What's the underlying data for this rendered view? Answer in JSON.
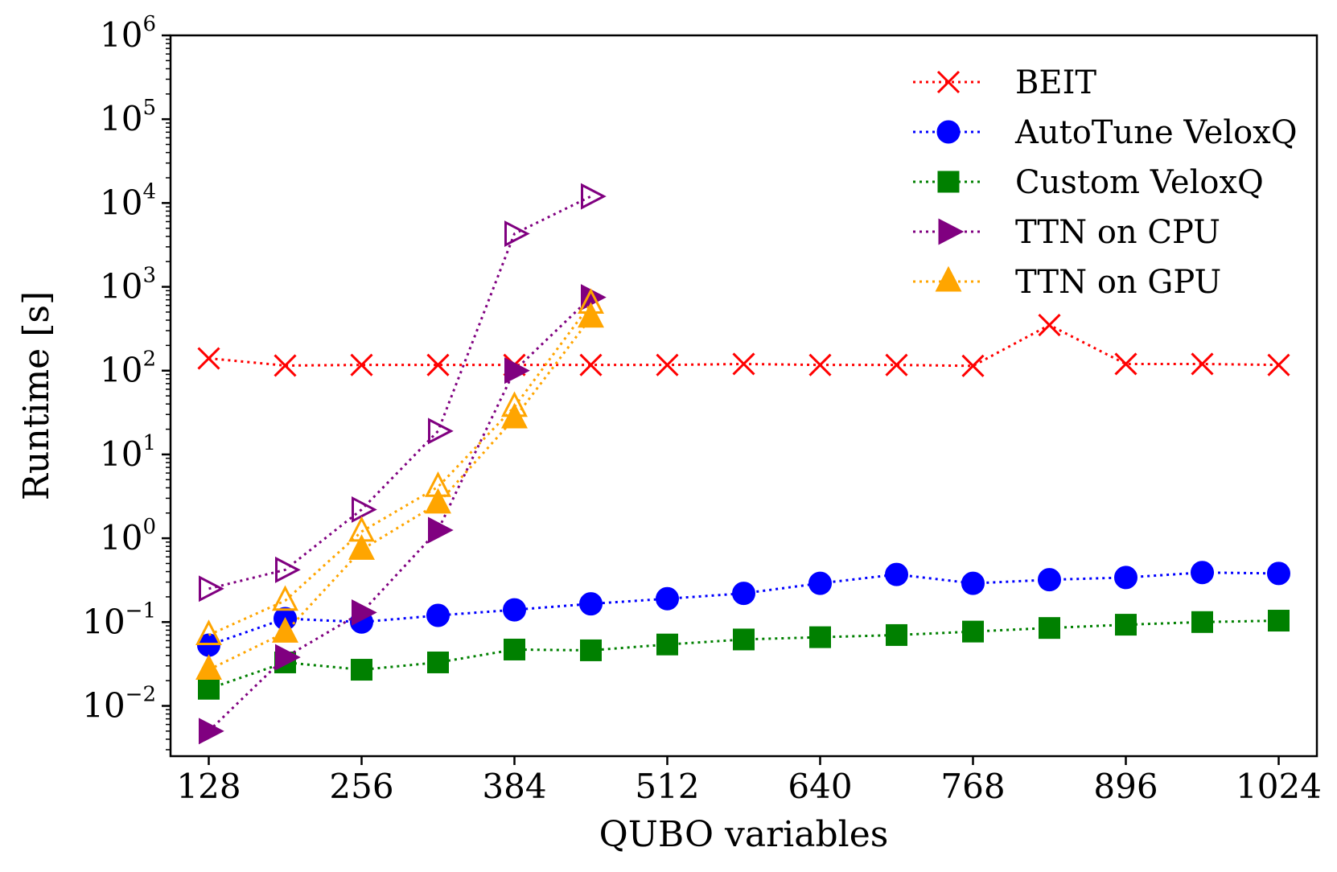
{
  "chart_data": {
    "type": "line",
    "title": "",
    "xlabel": "QUBO variables",
    "ylabel": "Runtime [s]",
    "yscale": "log",
    "xlim": [
      96,
      1056
    ],
    "ylim_log10": [
      -2.6,
      6
    ],
    "xticks": [
      128,
      256,
      384,
      512,
      640,
      768,
      896,
      1024
    ],
    "xtick_labels": [
      "128",
      "256",
      "384",
      "512",
      "640",
      "768",
      "896",
      "1024"
    ],
    "yticks_exp": [
      -2,
      -1,
      0,
      1,
      2,
      3,
      4,
      5,
      6
    ],
    "ytick_labels": [
      "10",
      "10",
      "10",
      "10",
      "10",
      "10",
      "10",
      "10",
      "10"
    ],
    "ytick_exponents": [
      "−2",
      "−1",
      "0",
      "1",
      "2",
      "3",
      "4",
      "5",
      "6"
    ],
    "legend_position": "top-right",
    "series": [
      {
        "name": "BEIT",
        "color": "#ff0000",
        "marker": "x",
        "filled": false,
        "in_legend": true,
        "x": [
          128,
          192,
          256,
          320,
          384,
          448,
          512,
          576,
          640,
          704,
          768,
          832,
          896,
          960,
          1024
        ],
        "y": [
          140,
          115,
          117,
          117,
          117,
          117,
          117,
          120,
          117,
          117,
          114,
          350,
          120,
          120,
          117
        ]
      },
      {
        "name": "AutoTune VeloxQ",
        "color": "#0000ff",
        "marker": "o",
        "filled": true,
        "in_legend": true,
        "x": [
          128,
          192,
          256,
          320,
          384,
          448,
          512,
          576,
          640,
          704,
          768,
          832,
          896,
          960,
          1024
        ],
        "y": [
          0.053,
          0.11,
          0.1,
          0.12,
          0.14,
          0.165,
          0.19,
          0.22,
          0.29,
          0.37,
          0.29,
          0.32,
          0.34,
          0.39,
          0.38
        ]
      },
      {
        "name": "Custom VeloxQ",
        "color": "#008000",
        "marker": "s",
        "filled": true,
        "in_legend": true,
        "x": [
          128,
          192,
          256,
          320,
          384,
          448,
          512,
          576,
          640,
          704,
          768,
          832,
          896,
          960,
          1024
        ],
        "y": [
          0.016,
          0.033,
          0.027,
          0.033,
          0.047,
          0.046,
          0.054,
          0.062,
          0.066,
          0.07,
          0.077,
          0.085,
          0.093,
          0.1,
          0.104
        ]
      },
      {
        "name": "TTN on CPU",
        "color": "#800080",
        "marker": ">",
        "filled": true,
        "in_legend": true,
        "x": [
          128,
          192,
          256,
          320,
          384,
          448
        ],
        "y": [
          0.005,
          0.038,
          0.13,
          1.25,
          100,
          750
        ]
      },
      {
        "name": "TTN on CPU (open)",
        "color": "#800080",
        "marker": ">",
        "filled": false,
        "in_legend": false,
        "x": [
          128,
          192,
          256,
          320,
          384,
          448
        ],
        "y": [
          0.25,
          0.42,
          2.2,
          19,
          4300,
          12000
        ]
      },
      {
        "name": "TTN on GPU",
        "color": "#ffa500",
        "marker": "^",
        "filled": true,
        "in_legend": true,
        "x": [
          128,
          192,
          256,
          320,
          384,
          448
        ],
        "y": [
          0.027,
          0.075,
          0.73,
          2.6,
          27,
          430
        ]
      },
      {
        "name": "TTN on GPU (open)",
        "color": "#ffa500",
        "marker": "^",
        "filled": false,
        "in_legend": false,
        "x": [
          128,
          192,
          256,
          320,
          384,
          448
        ],
        "y": [
          0.07,
          0.18,
          1.2,
          4.1,
          37,
          630
        ]
      }
    ]
  }
}
